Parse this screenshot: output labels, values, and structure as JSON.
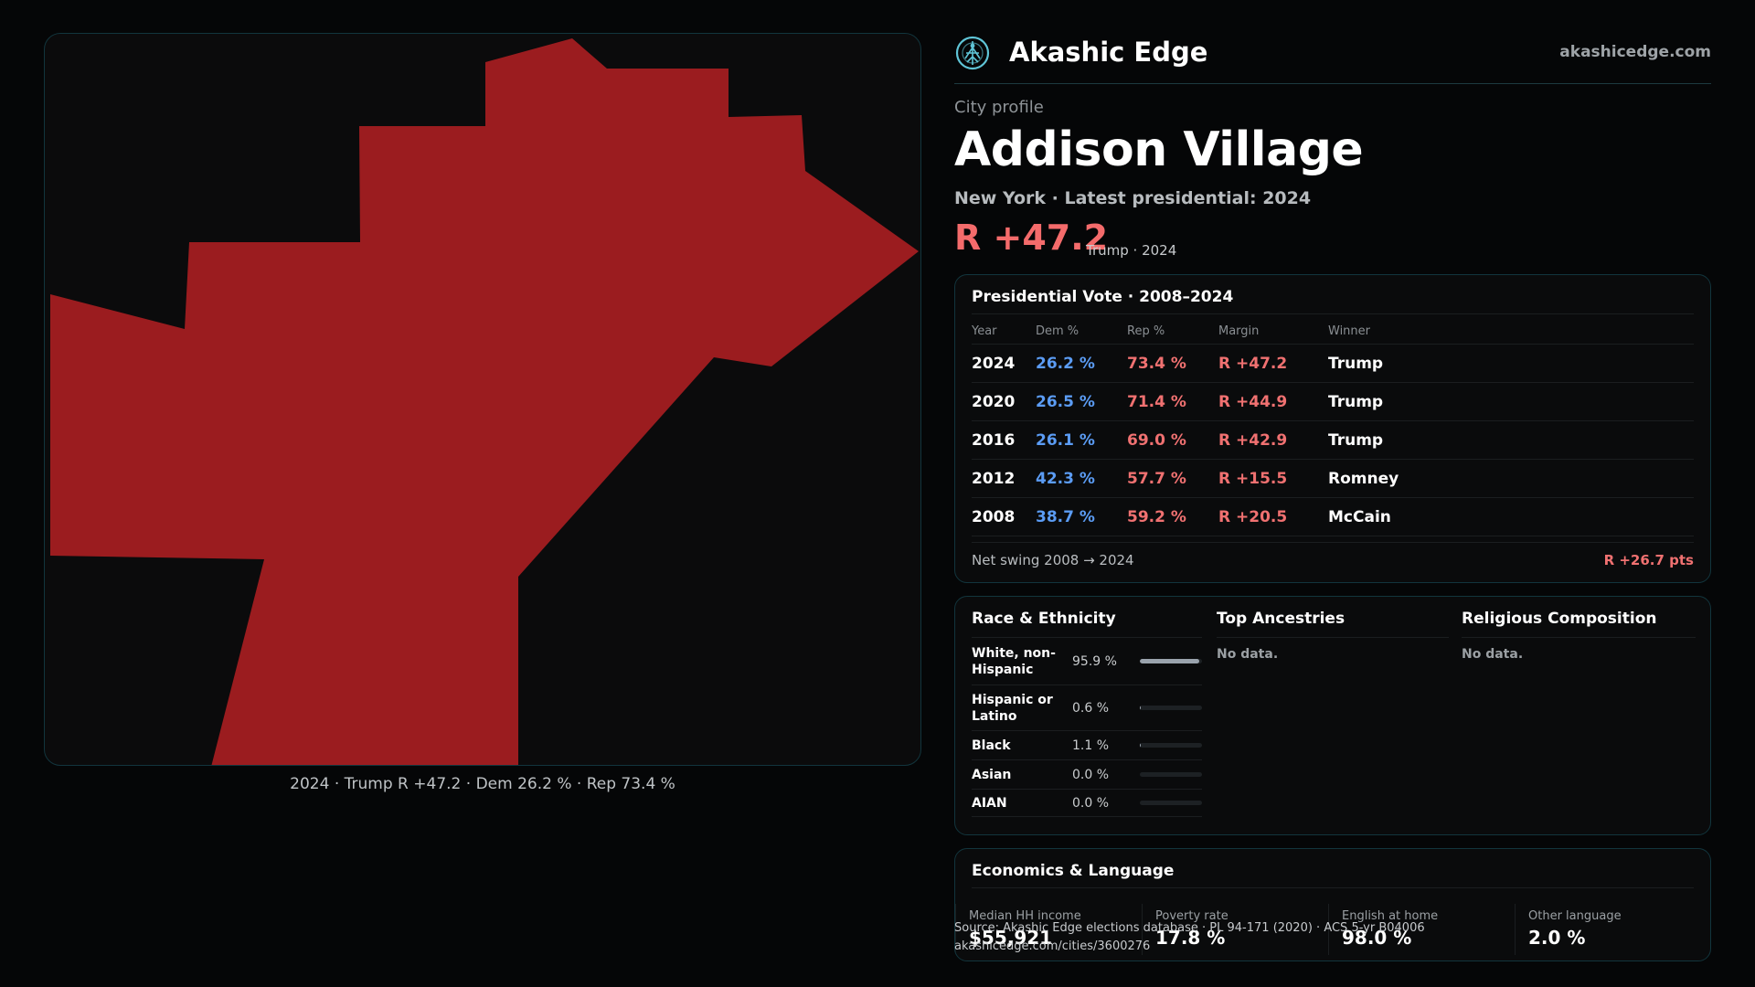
{
  "brand": {
    "name": "Akashic Edge",
    "site": "akashicedge.com",
    "logo_icon": "tree-of-life-icon"
  },
  "profile": {
    "eyebrow": "City profile",
    "city": "Addison Village",
    "subtitle": "New York · Latest presidential: 2024",
    "margin": "R +47.2",
    "margin_note": "Trump · 2024"
  },
  "map": {
    "caption": "2024 · Trump R +47.2 · Dem 26.2 % · Rep 73.4 %",
    "fill_color": "#9b1c1f"
  },
  "vote": {
    "title": "Presidential Vote · 2008–2024",
    "headers": {
      "year": "Year",
      "dem": "Dem %",
      "rep": "Rep %",
      "margin": "Margin",
      "winner": "Winner"
    },
    "rows": [
      {
        "year": "2024",
        "dem": "26.2 %",
        "rep": "73.4 %",
        "margin": "R +47.2",
        "winner": "Trump"
      },
      {
        "year": "2020",
        "dem": "26.5 %",
        "rep": "71.4 %",
        "margin": "R +44.9",
        "winner": "Trump"
      },
      {
        "year": "2016",
        "dem": "26.1 %",
        "rep": "69.0 %",
        "margin": "R +42.9",
        "winner": "Trump"
      },
      {
        "year": "2012",
        "dem": "42.3 %",
        "rep": "57.7 %",
        "margin": "R +15.5",
        "winner": "Romney"
      },
      {
        "year": "2008",
        "dem": "38.7 %",
        "rep": "59.2 %",
        "margin": "R +20.5",
        "winner": "McCain"
      }
    ],
    "swing_label": "Net swing 2008 → 2024",
    "swing_value": "R +26.7 pts"
  },
  "demographics": {
    "race_title": "Race & Ethnicity",
    "race": [
      {
        "label": "White, non-Hispanic",
        "value": "95.9 %",
        "pct": 95.9
      },
      {
        "label": "Hispanic or Latino",
        "value": "0.6 %",
        "pct": 0.6
      },
      {
        "label": "Black",
        "value": "1.1 %",
        "pct": 1.1
      },
      {
        "label": "Asian",
        "value": "0.0 %",
        "pct": 0.0
      },
      {
        "label": "AIAN",
        "value": "0.0 %",
        "pct": 0.0
      }
    ],
    "ancestry_title": "Top Ancestries",
    "ancestry_empty": "No data.",
    "religion_title": "Religious Composition",
    "religion_empty": "No data."
  },
  "economics": {
    "title": "Economics & Language",
    "cells": [
      {
        "label": "Median HH income",
        "value": "$55,921"
      },
      {
        "label": "Poverty rate",
        "value": "17.8 %"
      },
      {
        "label": "English at home",
        "value": "98.0 %"
      },
      {
        "label": "Other language",
        "value": "2.0 %"
      }
    ]
  },
  "source": {
    "line1": "Source: Akashic Edge elections database · PL 94-171 (2020) · ACS 5-yr B04006",
    "line2": "akashicedge.com/cities/3600276"
  }
}
